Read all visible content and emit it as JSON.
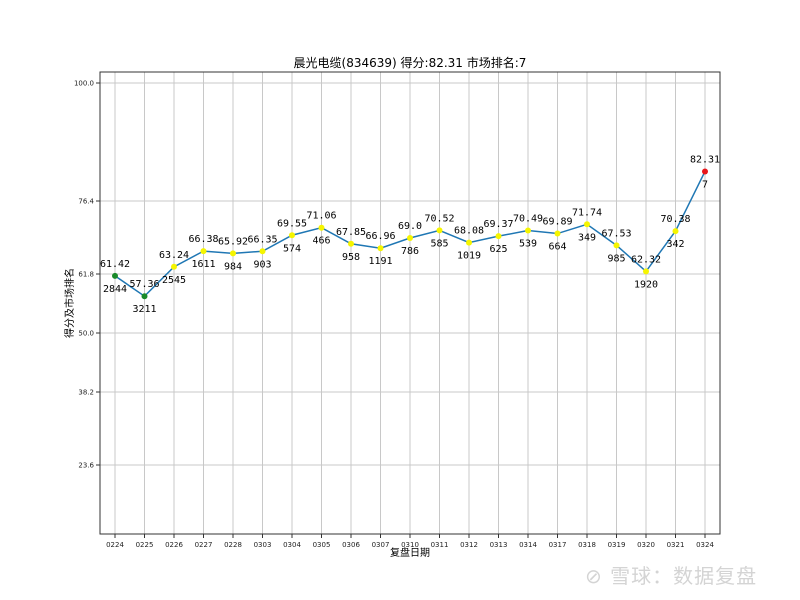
{
  "chart_data": {
    "type": "line",
    "title": "晨光电缆(834639) 得分:82.31  市场排名:7",
    "xlabel": "复盘日期",
    "ylabel": "得分及市场排名",
    "categories": [
      "0224",
      "0225",
      "0226",
      "0227",
      "0228",
      "0303",
      "0304",
      "0305",
      "0306",
      "0307",
      "0310",
      "0311",
      "0312",
      "0313",
      "0314",
      "0317",
      "0318",
      "0319",
      "0320",
      "0321",
      "0324"
    ],
    "series": [
      {
        "name": "得分",
        "values": [
          61.42,
          57.36,
          63.24,
          66.38,
          65.92,
          66.35,
          69.55,
          71.06,
          67.85,
          66.96,
          69.0,
          70.52,
          68.08,
          69.37,
          70.49,
          69.89,
          71.74,
          67.53,
          62.32,
          70.38,
          82.31
        ]
      },
      {
        "name": "市场排名",
        "values": [
          2844,
          3211,
          2545,
          1611,
          984,
          903,
          574,
          466,
          958,
          1191,
          786,
          585,
          1019,
          625,
          539,
          664,
          349,
          985,
          1920,
          342,
          7
        ]
      }
    ],
    "score_labels": [
      "61.42",
      "57.36",
      "63.24",
      "66.38",
      "65.92",
      "66.35",
      "69.55",
      "71.06",
      "67.85",
      "66.96",
      "69.0",
      "70.52",
      "68.08",
      "69.37",
      "70.49",
      "69.89",
      "71.74",
      "67.53",
      "62.32",
      "70.38",
      "82.31"
    ],
    "marker_colors": [
      "green",
      "green",
      "yellow",
      "yellow",
      "yellow",
      "yellow",
      "yellow",
      "yellow",
      "yellow",
      "yellow",
      "yellow",
      "yellow",
      "yellow",
      "yellow",
      "yellow",
      "yellow",
      "yellow",
      "yellow",
      "yellow",
      "yellow",
      "red"
    ],
    "yticks": [
      100.0,
      76.4,
      61.8,
      50.0,
      38.2,
      23.6
    ],
    "ytick_labels": [
      "100.0",
      "76.4",
      "61.8",
      "50.0",
      "38.2",
      "23.6"
    ],
    "ylim": [
      9.8,
      102.2
    ],
    "grid": true,
    "legend": "none",
    "line_color": "#1f77b4"
  },
  "colors": {
    "line": "#1f77b4",
    "green": "#1a8a2a",
    "yellow": "#f5f500",
    "red": "#e8161b",
    "grid": "#c8c8c8"
  },
  "watermark": "雪球：数据复盘"
}
